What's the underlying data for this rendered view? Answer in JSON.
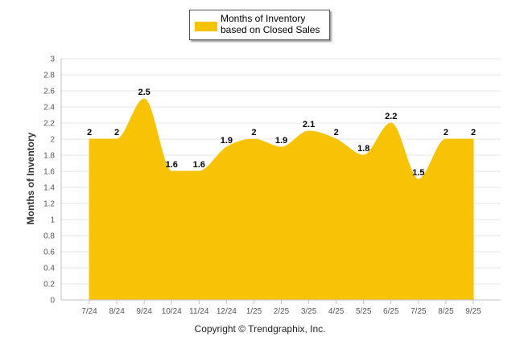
{
  "chart_data": {
    "type": "area",
    "categories": [
      "7/24",
      "8/24",
      "9/24",
      "10/24",
      "11/24",
      "12/24",
      "1/25",
      "2/25",
      "3/25",
      "4/25",
      "5/25",
      "6/25",
      "7/25",
      "8/25",
      "9/25"
    ],
    "series": [
      {
        "name": "Months of Inventory based on Closed Sales",
        "values": [
          2,
          2,
          2.5,
          1.6,
          1.6,
          1.9,
          2,
          1.9,
          2.1,
          2,
          1.8,
          2.2,
          1.5,
          2,
          2
        ],
        "data_labels": [
          "2",
          "2",
          "2.5",
          "1.6",
          "1.6",
          "1.9",
          "2",
          "1.9",
          "2.1",
          "2",
          "1.8",
          "2.2",
          "1.5",
          "2",
          "2"
        ]
      }
    ],
    "ylabel": "Months of Inventory",
    "xlabel": "",
    "ylim": [
      0,
      3
    ],
    "y_ticks": [
      0,
      0.2,
      0.4,
      0.6,
      0.8,
      1,
      1.2,
      1.4,
      1.6,
      1.8,
      2,
      2.2,
      2.4,
      2.6,
      2.8,
      3
    ],
    "y_tick_labels": [
      "0",
      "0.2",
      "0.4",
      "0.6",
      "0.8",
      "1",
      "1.2",
      "1.4",
      "1.6",
      "1.8",
      "2",
      "2.2",
      "2.4",
      "2.6",
      "2.8",
      "3"
    ],
    "grid": true,
    "legend_position": "top-center",
    "fill_color": "#F7C304"
  },
  "legend": {
    "label": "Months of Inventory based on Closed Sales",
    "color": "#F7C304"
  },
  "footer": {
    "copyright": "Copyright © Trendgraphix, Inc."
  }
}
